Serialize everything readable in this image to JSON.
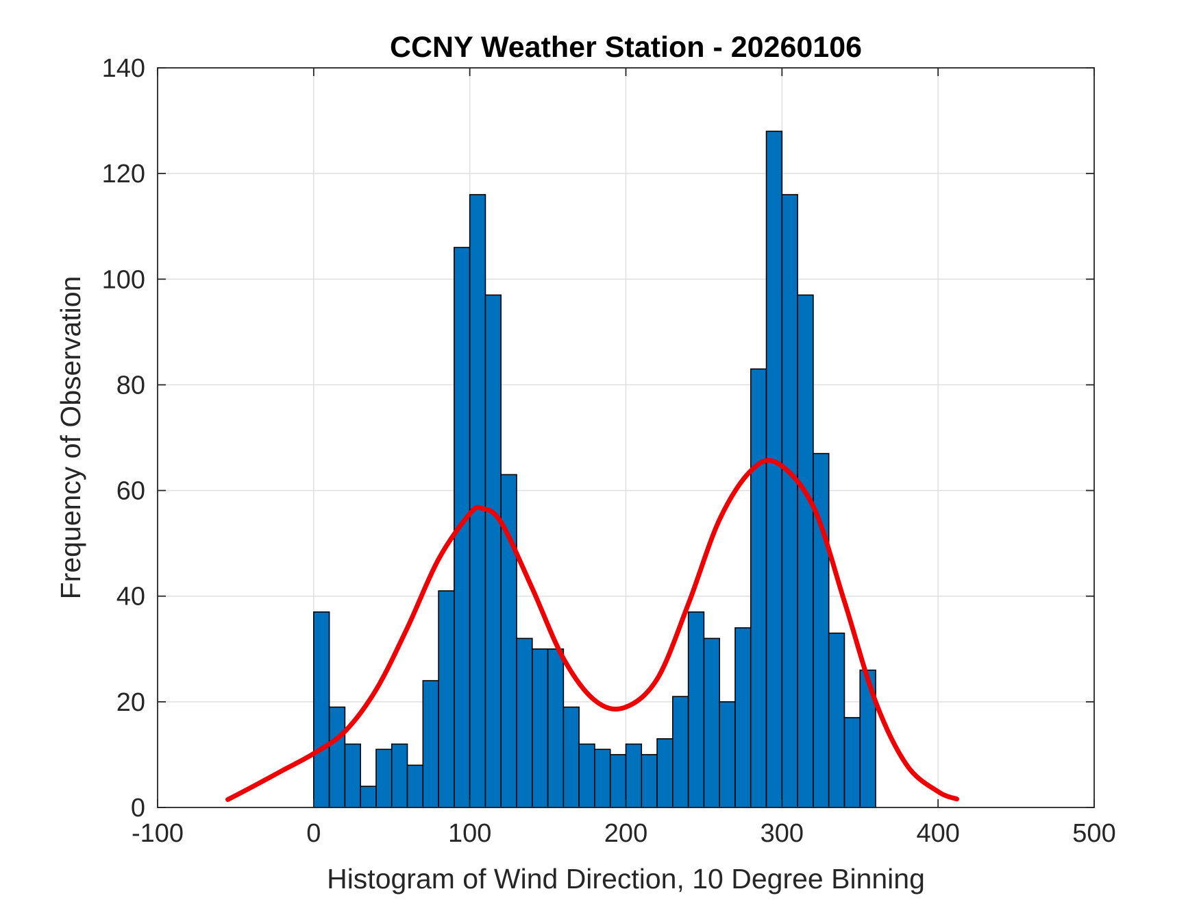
{
  "chart_data": {
    "type": "bar",
    "title": "CCNY Weather Station - 20260106",
    "xlabel": "Histogram of Wind Direction, 10 Degree Binning",
    "ylabel": "Frequency of Observation",
    "xlim": [
      -100,
      500
    ],
    "ylim": [
      0,
      140
    ],
    "xticks": [
      -100,
      0,
      100,
      200,
      300,
      400,
      500
    ],
    "yticks": [
      0,
      20,
      40,
      60,
      80,
      100,
      120,
      140
    ],
    "grid": true,
    "bin_width": 10,
    "bins": {
      "edges_start": [
        0,
        10,
        20,
        30,
        40,
        50,
        60,
        70,
        80,
        90,
        100,
        110,
        120,
        130,
        140,
        150,
        160,
        170,
        180,
        190,
        200,
        210,
        220,
        230,
        240,
        250,
        260,
        270,
        280,
        290,
        300,
        310,
        320,
        330,
        340,
        350
      ],
      "values": [
        37,
        19,
        12,
        4,
        11,
        12,
        8,
        24,
        41,
        106,
        116,
        97,
        63,
        32,
        30,
        30,
        19,
        12,
        11,
        10,
        12,
        10,
        13,
        21,
        37,
        32,
        20,
        34,
        83,
        128,
        116,
        97,
        67,
        33,
        17,
        26
      ]
    },
    "fit_curve": {
      "type": "line",
      "x": [
        -55,
        -40,
        -20,
        0,
        20,
        40,
        60,
        80,
        100,
        108,
        120,
        140,
        160,
        180,
        199,
        220,
        240,
        260,
        280,
        297,
        320,
        340,
        360,
        380,
        400,
        412
      ],
      "y": [
        1.5,
        3.8,
        7.0,
        10.2,
        14.4,
        22.3,
        34.0,
        47.0,
        55.6,
        56.6,
        54.0,
        41.5,
        28.2,
        20.3,
        18.9,
        24.3,
        38.5,
        54.5,
        63.7,
        65.2,
        57.0,
        39.0,
        20.0,
        8.0,
        3.0,
        1.6
      ]
    },
    "colors": {
      "bar_fill": "#0072BD",
      "bar_edge": "#000000",
      "fit_line": "#EE0000",
      "grid": "#DFDFDF",
      "axis": "#262626"
    }
  }
}
